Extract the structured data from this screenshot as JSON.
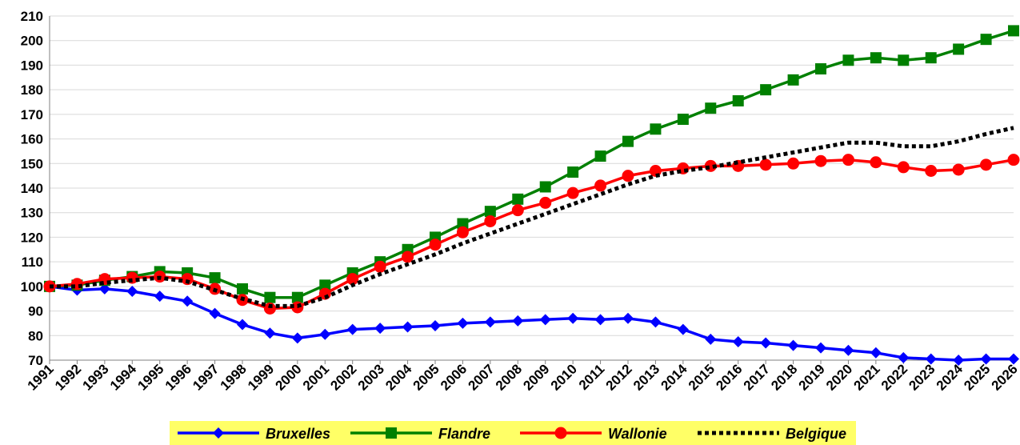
{
  "chart_data": {
    "type": "line",
    "title": "",
    "xlabel": "",
    "ylabel": "",
    "x": [
      "1991",
      "1992",
      "1993",
      "1994",
      "1995",
      "1996",
      "1997",
      "1998",
      "1999",
      "2000",
      "2001",
      "2002",
      "2003",
      "2004",
      "2005",
      "2006",
      "2007",
      "2008",
      "2009",
      "2010",
      "2011",
      "2012",
      "2013",
      "2014",
      "2015",
      "2016",
      "2017",
      "2018",
      "2019",
      "2020",
      "2021",
      "2022",
      "2023",
      "2024",
      "2025",
      "2026"
    ],
    "ylim": [
      70,
      210
    ],
    "yticks": [
      70,
      80,
      90,
      100,
      110,
      120,
      130,
      140,
      150,
      160,
      170,
      180,
      190,
      200,
      210
    ],
    "grid": true,
    "legend_position": "bottom",
    "legend_background": "#ffff66",
    "series": [
      {
        "name": "Bruxelles",
        "color": "#0000ff",
        "marker": "diamond",
        "dashed": false,
        "values": [
          100,
          98.5,
          99,
          98,
          96,
          94,
          89,
          84.5,
          81,
          79,
          80.5,
          82.5,
          83,
          83.5,
          84,
          85,
          85.5,
          86,
          86.5,
          87,
          86.5,
          87,
          85.5,
          82.5,
          78.5,
          77.5,
          77,
          76,
          75,
          74,
          73,
          71,
          70.5,
          70,
          70.5,
          70.5
        ]
      },
      {
        "name": "Flandre",
        "color": "#008000",
        "marker": "square",
        "dashed": false,
        "values": [
          100,
          100.5,
          102.5,
          104,
          106,
          105.5,
          103.5,
          99,
          95.5,
          95.5,
          100.5,
          105.5,
          110,
          115,
          120,
          125.5,
          130.5,
          135.5,
          140.5,
          146.5,
          153,
          159,
          164,
          168,
          172.5,
          175.5,
          180,
          184,
          188.5,
          192,
          193,
          192,
          193,
          196.5,
          200.5,
          204
        ]
      },
      {
        "name": "Wallonie",
        "color": "#ff0000",
        "marker": "circle",
        "dashed": false,
        "values": [
          100,
          101,
          103,
          103.5,
          104,
          103,
          99,
          94.5,
          91,
          91.5,
          97,
          103,
          108,
          112,
          117,
          122,
          126.5,
          131,
          134,
          138,
          141,
          145,
          147,
          148,
          149,
          149,
          149.5,
          150,
          151,
          151.5,
          150.5,
          148.5,
          147,
          147.5,
          149.5,
          151.5
        ]
      },
      {
        "name": "Belgique",
        "color": "#000000",
        "marker": "none",
        "dashed": true,
        "values": [
          100,
          100,
          101.5,
          102.5,
          103.5,
          102,
          98.5,
          95,
          92,
          92,
          95.5,
          100.5,
          105,
          109,
          113,
          117.5,
          121.5,
          125.5,
          129.5,
          133.5,
          137.5,
          141.5,
          145,
          147,
          148.5,
          150.5,
          152.5,
          154.5,
          156.5,
          158.5,
          158.5,
          157,
          157,
          159,
          162,
          164.5
        ]
      }
    ]
  }
}
